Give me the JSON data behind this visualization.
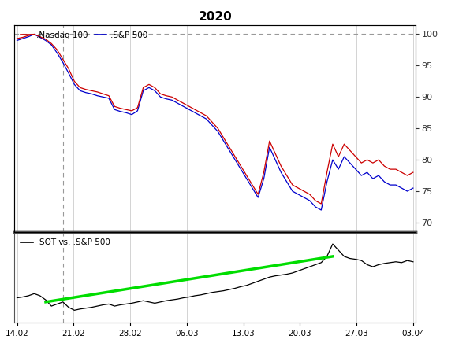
{
  "title": "2020",
  "legend_nasdaq": ".Nasdaq 100",
  "legend_sp500": ".S&P 500",
  "legend_sqt": "SQT vs. .S&P 500",
  "nasdaq_color": "#cc0000",
  "sp500_color": "#0000cc",
  "sqt_color": "#000000",
  "green_color": "#00dd00",
  "dashed_line_color": "#999999",
  "vline_color": "#999999",
  "upper_ylim": [
    68.5,
    101.5
  ],
  "upper_yticks": [
    70,
    75,
    80,
    85,
    90,
    95,
    100
  ],
  "xtick_labels": [
    "14.02",
    "21.02",
    "28.02",
    "06.03",
    "13.03",
    "20.03",
    "27.03",
    "03.04"
  ],
  "nasdaq_values": [
    99.3,
    99.5,
    99.8,
    100.0,
    99.6,
    99.2,
    98.5,
    97.5,
    96.0,
    94.5,
    92.5,
    91.5,
    91.2,
    91.0,
    90.8,
    90.5,
    90.2,
    88.5,
    88.2,
    88.0,
    87.8,
    88.3,
    91.5,
    92.0,
    91.5,
    90.5,
    90.2,
    90.0,
    89.5,
    89.0,
    88.5,
    88.0,
    87.5,
    87.0,
    86.0,
    85.0,
    83.5,
    82.0,
    80.5,
    79.0,
    77.5,
    76.0,
    74.5,
    78.0,
    83.0,
    81.0,
    79.0,
    77.5,
    76.0,
    75.5,
    75.0,
    74.5,
    73.5,
    73.0,
    78.0,
    82.5,
    80.5,
    82.5,
    81.5,
    80.5,
    79.5,
    80.0,
    79.5,
    80.0,
    79.0,
    78.5,
    78.5,
    78.0,
    77.5,
    78.0
  ],
  "sp500_values": [
    99.0,
    99.3,
    99.6,
    100.0,
    99.5,
    99.0,
    98.3,
    97.0,
    95.5,
    93.8,
    92.0,
    91.0,
    90.7,
    90.5,
    90.2,
    90.0,
    89.8,
    88.0,
    87.7,
    87.5,
    87.2,
    87.8,
    91.0,
    91.5,
    91.0,
    90.0,
    89.7,
    89.5,
    89.0,
    88.5,
    88.0,
    87.5,
    87.0,
    86.5,
    85.5,
    84.5,
    83.0,
    81.5,
    80.0,
    78.5,
    77.0,
    75.5,
    74.0,
    77.0,
    82.0,
    80.0,
    78.0,
    76.5,
    75.0,
    74.5,
    74.0,
    73.5,
    72.5,
    72.0,
    76.5,
    80.0,
    78.5,
    80.5,
    79.5,
    78.5,
    77.5,
    78.0,
    77.0,
    77.5,
    76.5,
    76.0,
    76.0,
    75.5,
    75.0,
    75.5
  ],
  "sqt_values": [
    -2.5,
    -2.3,
    -2.0,
    -1.5,
    -2.0,
    -3.0,
    -4.5,
    -4.0,
    -3.5,
    -4.8,
    -5.5,
    -5.2,
    -5.0,
    -4.8,
    -4.5,
    -4.2,
    -4.0,
    -4.5,
    -4.2,
    -4.0,
    -3.8,
    -3.5,
    -3.2,
    -3.5,
    -3.8,
    -3.5,
    -3.2,
    -3.0,
    -2.8,
    -2.5,
    -2.3,
    -2.0,
    -1.8,
    -1.5,
    -1.2,
    -1.0,
    -0.8,
    -0.5,
    -0.2,
    0.2,
    0.5,
    1.0,
    1.5,
    2.0,
    2.5,
    2.8,
    3.0,
    3.2,
    3.5,
    4.0,
    4.5,
    5.0,
    5.5,
    6.0,
    7.5,
    10.5,
    9.0,
    7.5,
    7.0,
    6.8,
    6.5,
    5.5,
    5.0,
    5.5,
    5.8,
    6.0,
    6.2,
    6.0,
    6.5,
    6.2
  ],
  "green_line_x": [
    5,
    55
  ],
  "green_line_y": [
    -3.5,
    7.5
  ],
  "background_color": "#ffffff",
  "grid_color": "#cccccc",
  "separator_color": "#555555",
  "panel_bg": "#f8f8f8"
}
